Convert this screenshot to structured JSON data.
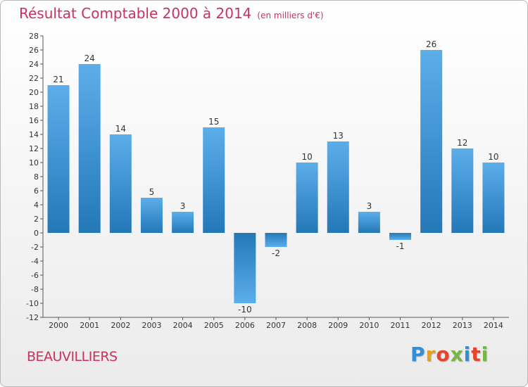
{
  "header": {
    "title": "Résultat Comptable 2000 à 2014",
    "subtitle": "(en milliers d'€)"
  },
  "footer": {
    "commune": "BEAUVILLIERS",
    "brand_letters": [
      "P",
      "r",
      "o",
      "x",
      "i",
      "t",
      "i"
    ],
    "brand_colors": [
      "#2f8fd8",
      "#e8a21a",
      "#e2462f",
      "#74b843",
      "#2f8fd8",
      "#e2462f",
      "#74b843"
    ]
  },
  "chart_data": {
    "type": "bar",
    "title": "Résultat Comptable 2000 à 2014",
    "subtitle": "(en milliers d'€)",
    "xlabel": "",
    "ylabel": "",
    "categories": [
      "2000",
      "2001",
      "2002",
      "2003",
      "2004",
      "2005",
      "2006",
      "2007",
      "2008",
      "2009",
      "2010",
      "2011",
      "2012",
      "2013",
      "2014"
    ],
    "values": [
      21,
      24,
      14,
      5,
      3,
      15,
      -10,
      -2,
      10,
      13,
      3,
      -1,
      26,
      12,
      10
    ],
    "ylim": [
      -12,
      28
    ],
    "yticks": [
      28,
      26,
      24,
      22,
      20,
      18,
      16,
      14,
      12,
      10,
      8,
      6,
      4,
      2,
      0,
      -2,
      -4,
      -6,
      -8,
      -10,
      -12
    ],
    "grid": false,
    "bar_color_light": "#5caeea",
    "bar_color_dark": "#2478b8"
  }
}
